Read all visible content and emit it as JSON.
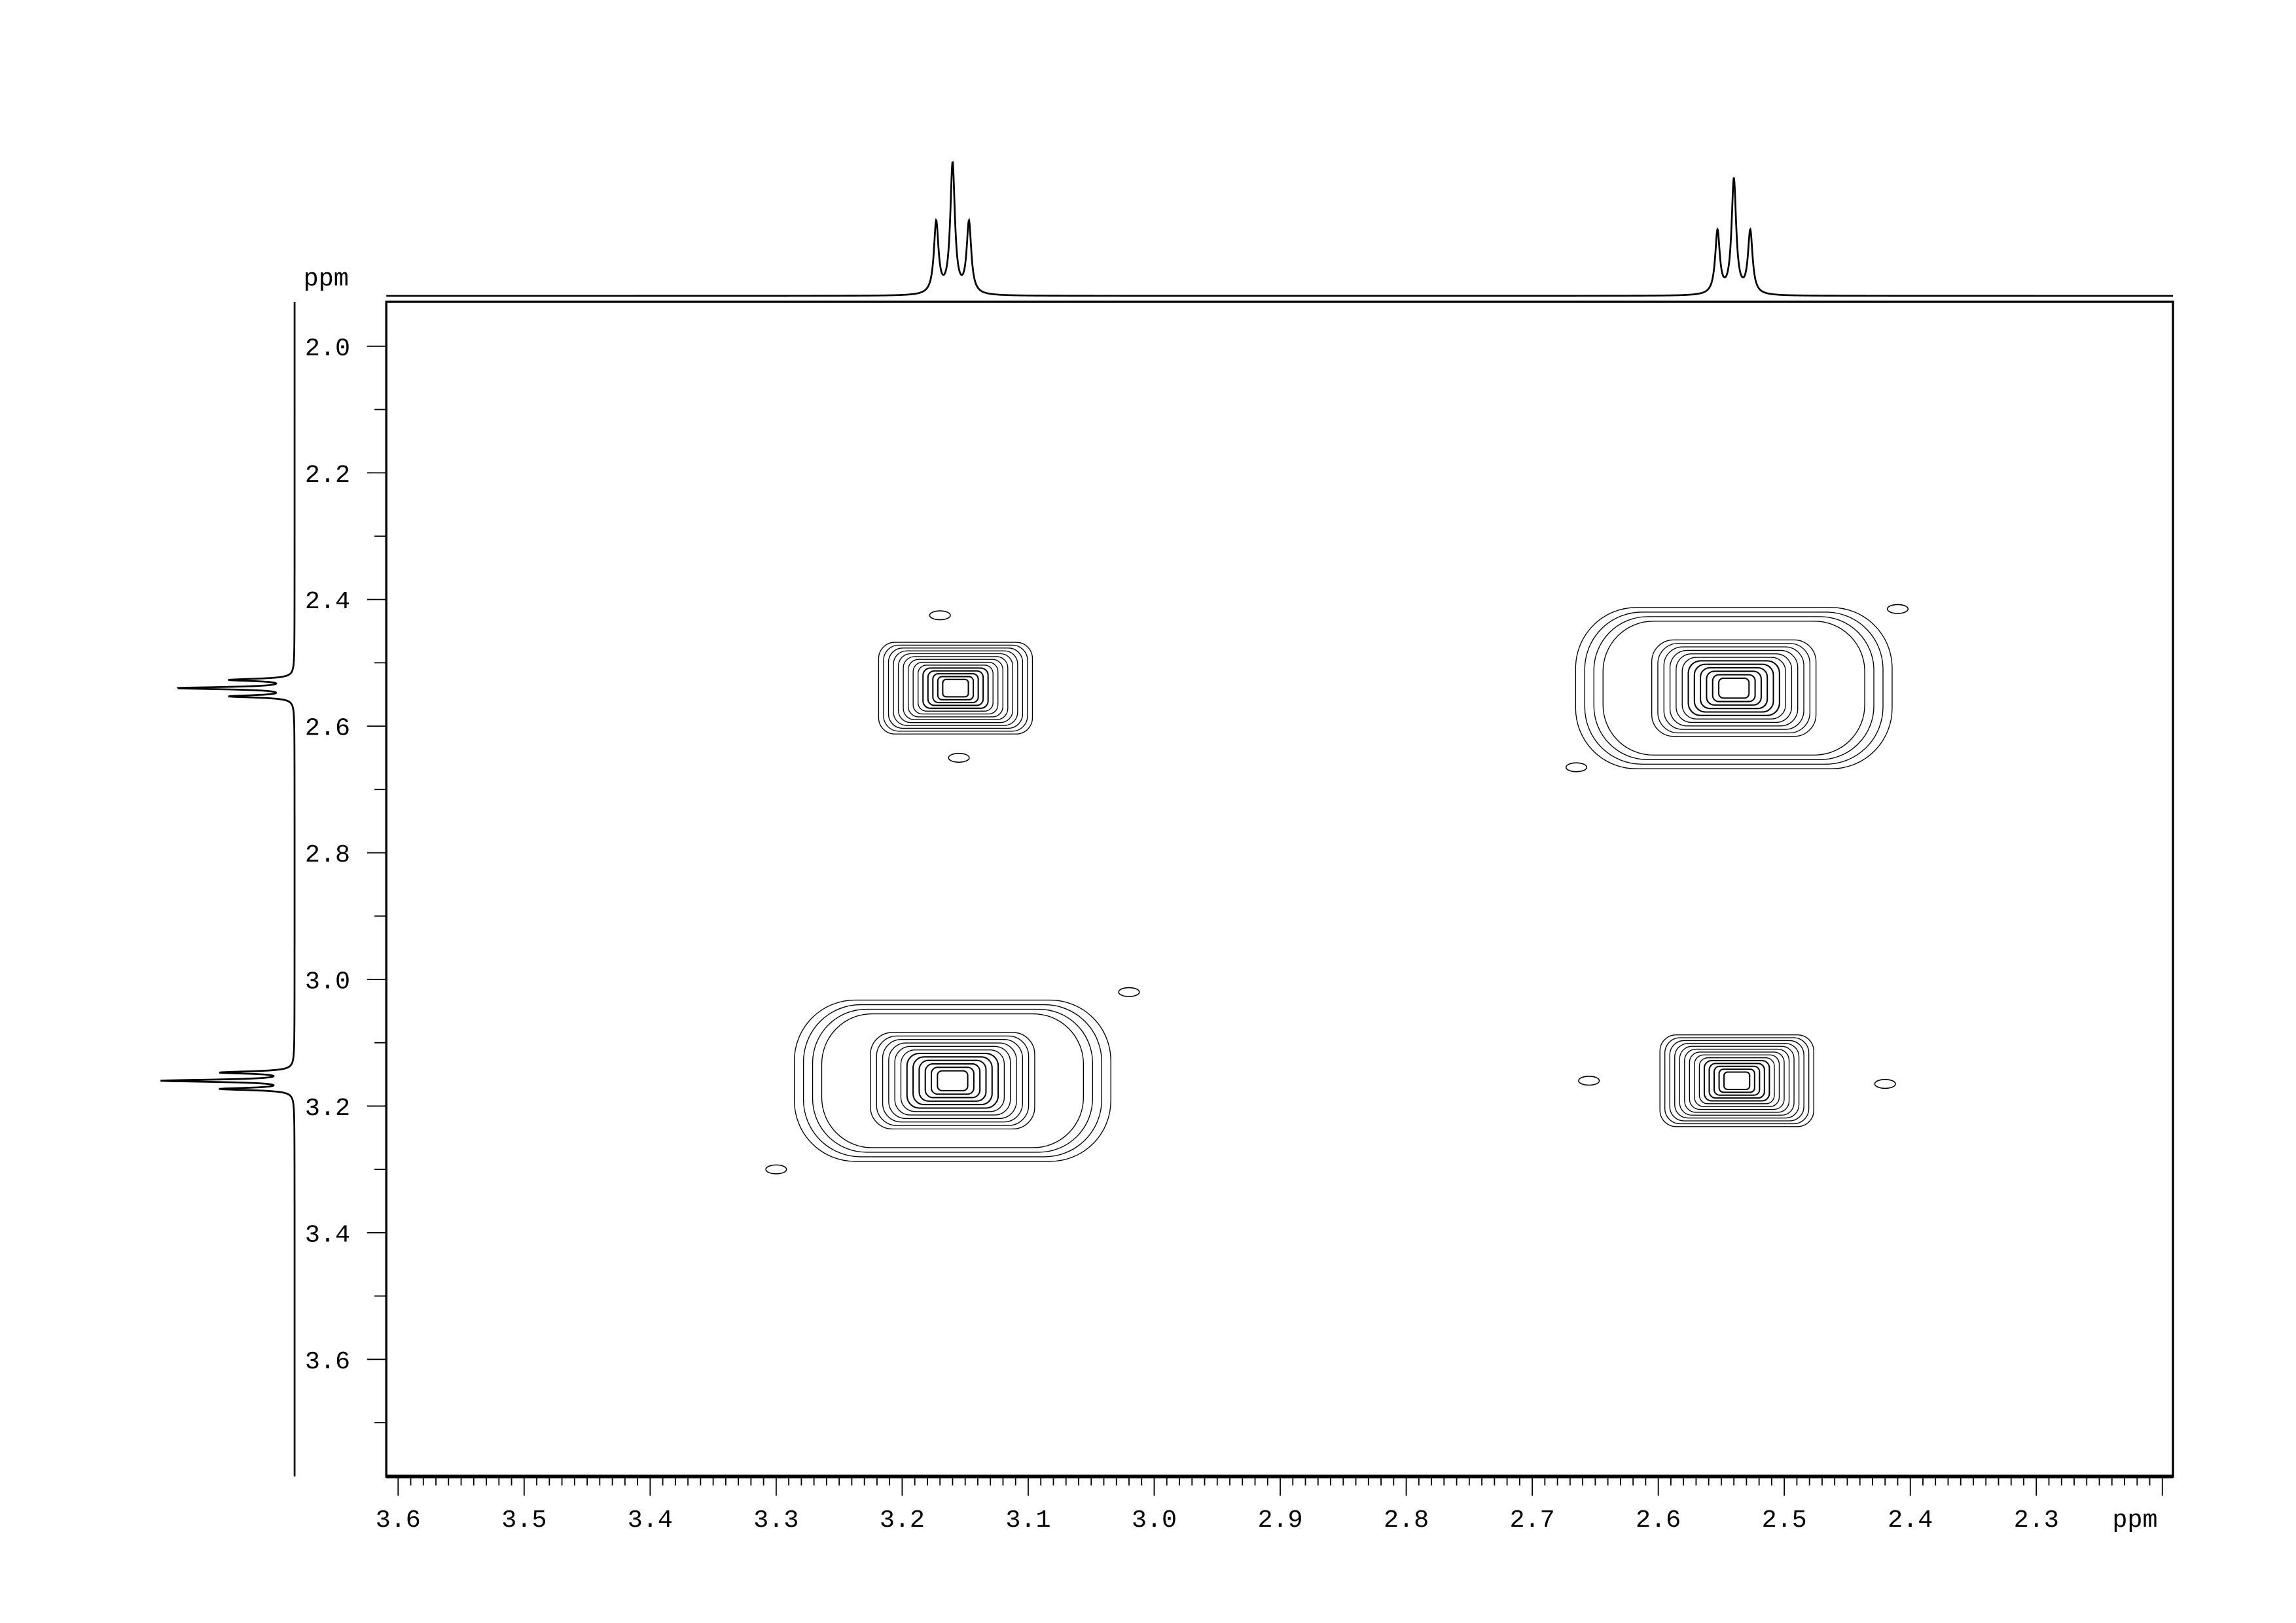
{
  "chart_data": {
    "type": "contour",
    "experiment_view": "2D homonuclear correlation (COSY-type) contour plot with 1D projections",
    "x_axis": {
      "label": "ppm",
      "range": [
        3.61,
        2.19
      ],
      "reversed": true,
      "tick_labels": [
        "3.6",
        "3.5",
        "3.4",
        "3.3",
        "3.2",
        "3.1",
        "3.0",
        "2.9",
        "2.8",
        "2.7",
        "2.6",
        "2.5",
        "2.4",
        "2.3"
      ]
    },
    "y_axis": {
      "label": "ppm",
      "range": [
        1.93,
        3.785
      ],
      "reversed": true,
      "tick_labels": [
        "2.0",
        "2.2",
        "2.4",
        "2.6",
        "2.8",
        "3.0",
        "3.2",
        "3.4",
        "3.6"
      ]
    },
    "grid": false,
    "contour_color": "#000000",
    "peaks": [
      {
        "x": 3.16,
        "y": 2.54,
        "kind": "cross",
        "levels": 14
      },
      {
        "x": 2.54,
        "y": 2.54,
        "kind": "diagonal",
        "levels": 16
      },
      {
        "x": 3.16,
        "y": 3.16,
        "kind": "diagonal",
        "levels": 16
      },
      {
        "x": 2.54,
        "y": 3.16,
        "kind": "cross",
        "levels": 14
      }
    ],
    "minor_features": [
      {
        "x": 3.17,
        "y": 2.425
      },
      {
        "x": 3.155,
        "y": 2.65
      },
      {
        "x": 2.41,
        "y": 2.415
      },
      {
        "x": 2.665,
        "y": 2.665
      },
      {
        "x": 3.02,
        "y": 3.02
      },
      {
        "x": 3.3,
        "y": 3.3
      },
      {
        "x": 2.655,
        "y": 3.16
      },
      {
        "x": 2.42,
        "y": 3.165
      }
    ],
    "projection_peaks": [
      {
        "center": 3.16,
        "multiplicity": "triplet",
        "J_ppm": 0.013,
        "relative_height": 1.0
      },
      {
        "center": 2.54,
        "multiplicity": "triplet",
        "J_ppm": 0.013,
        "relative_height": 0.88
      }
    ]
  }
}
